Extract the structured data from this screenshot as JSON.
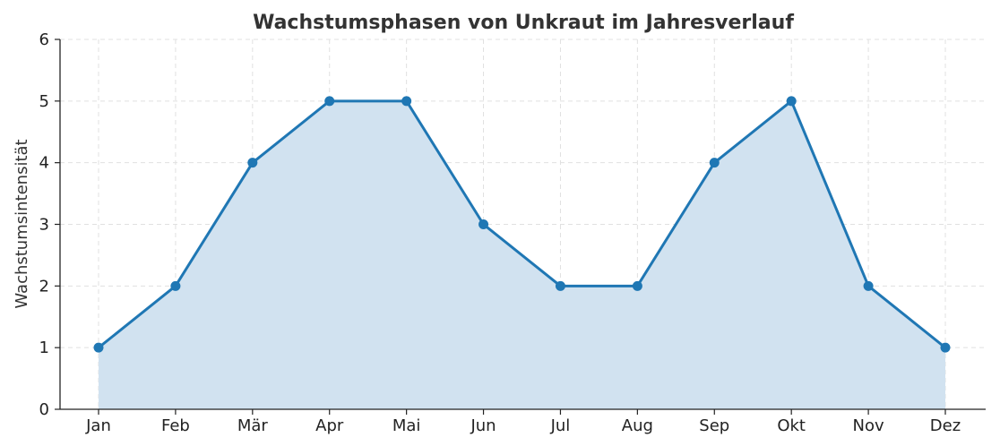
{
  "chart_data": {
    "type": "area",
    "title": "Wachstumsphasen von Unkraut im Jahresverlauf",
    "xlabel": "",
    "ylabel": "Wachstumsintensität",
    "categories": [
      "Jan",
      "Feb",
      "Mär",
      "Apr",
      "Mai",
      "Jun",
      "Jul",
      "Aug",
      "Sep",
      "Okt",
      "Nov",
      "Dez"
    ],
    "values": [
      1,
      2,
      4,
      5,
      5,
      3,
      2,
      2,
      4,
      5,
      2,
      1
    ],
    "ylim": [
      0,
      6
    ],
    "yticks": [
      "0",
      "1",
      "2",
      "3",
      "4",
      "5",
      "6"
    ],
    "grid": true,
    "markers": true,
    "colors": {
      "line": "#1f77b4",
      "fill": "#d1e2f0",
      "marker": "#1f77b4"
    }
  }
}
